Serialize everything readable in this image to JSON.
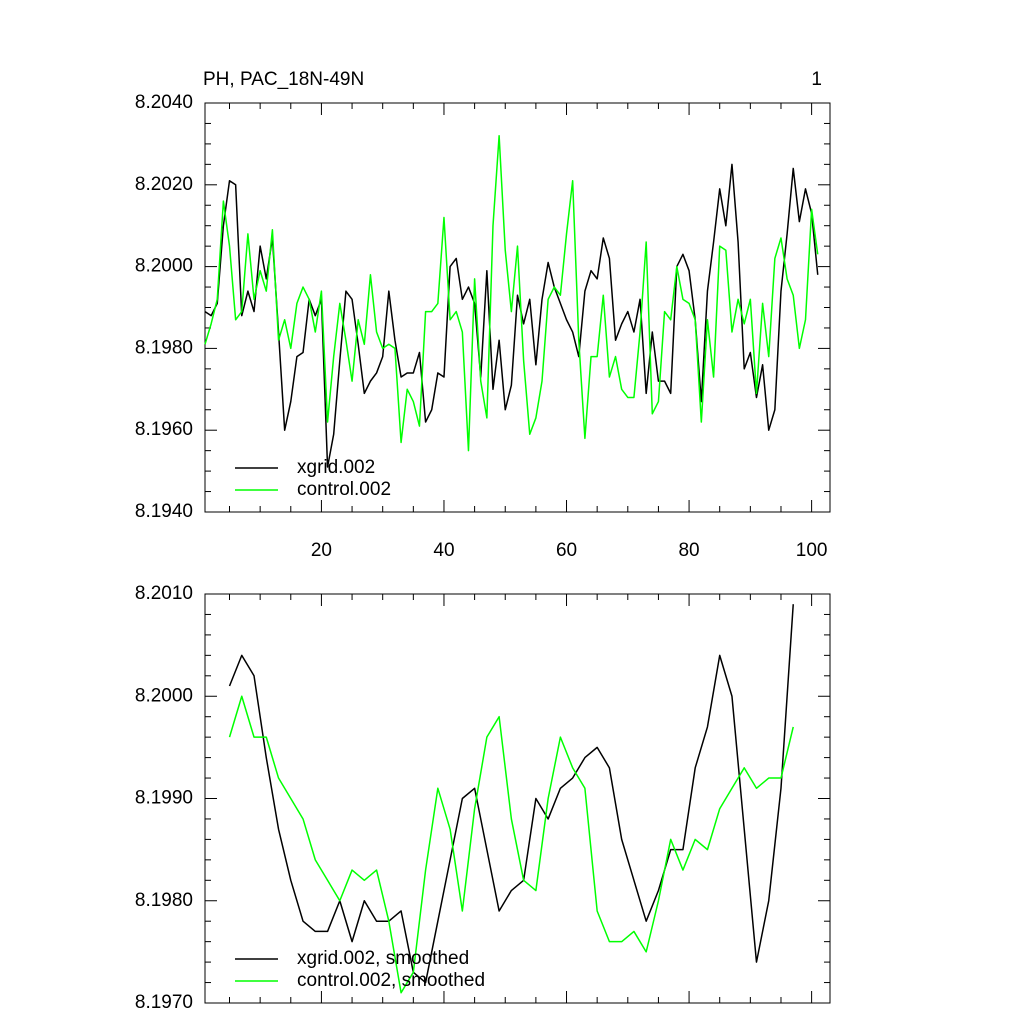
{
  "chart_data": [
    {
      "type": "line",
      "title": "PH, PAC_18N-49N",
      "annotation": "1",
      "x": [
        1,
        2,
        3,
        4,
        5,
        6,
        7,
        8,
        9,
        10,
        11,
        12,
        13,
        14,
        15,
        16,
        17,
        18,
        19,
        20,
        21,
        22,
        23,
        24,
        25,
        26,
        27,
        28,
        29,
        30,
        31,
        32,
        33,
        34,
        35,
        36,
        37,
        38,
        39,
        40,
        41,
        42,
        43,
        44,
        45,
        46,
        47,
        48,
        49,
        50,
        51,
        52,
        53,
        54,
        55,
        56,
        57,
        58,
        59,
        60,
        61,
        62,
        63,
        64,
        65,
        66,
        67,
        68,
        69,
        70,
        71,
        72,
        73,
        74,
        75,
        76,
        77,
        78,
        79,
        80,
        81,
        82,
        83,
        84,
        85,
        86,
        87,
        88,
        89,
        90,
        91,
        92,
        93,
        94,
        95,
        96,
        97,
        98,
        99,
        100,
        101
      ],
      "xlim": [
        1,
        103
      ],
      "xticks": [
        20,
        40,
        60,
        80,
        100
      ],
      "show_xtick_labels": true,
      "ylim": [
        8.194,
        8.204
      ],
      "yticks": [
        {
          "value": 8.194,
          "label": "8.1940"
        },
        {
          "value": 8.196,
          "label": "8.1960"
        },
        {
          "value": 8.198,
          "label": "8.1980"
        },
        {
          "value": 8.2,
          "label": "8.2000"
        },
        {
          "value": 8.202,
          "label": "8.2020"
        },
        {
          "value": 8.204,
          "label": "8.2040"
        }
      ],
      "legend": "lower left",
      "series": [
        {
          "name": "xgrid.002",
          "color": "#000000",
          "values": [
            8.1989,
            8.1988,
            8.1991,
            8.201,
            8.2021,
            8.202,
            8.1988,
            8.1994,
            8.1989,
            8.2005,
            8.1997,
            8.2007,
            8.1984,
            8.196,
            8.1967,
            8.1978,
            8.1979,
            8.1992,
            8.1988,
            8.1992,
            8.1951,
            8.1959,
            8.1977,
            8.1994,
            8.1992,
            8.1981,
            8.1969,
            8.1972,
            8.1974,
            8.1978,
            8.1994,
            8.1982,
            8.1973,
            8.1974,
            8.1974,
            8.1979,
            8.1962,
            8.1965,
            8.1974,
            8.1973,
            8.2,
            8.2002,
            8.1992,
            8.1995,
            8.1991,
            8.1973,
            8.1999,
            8.197,
            8.1982,
            8.1965,
            8.1971,
            8.1993,
            8.1986,
            8.1992,
            8.1976,
            8.1992,
            8.2001,
            8.1995,
            8.1991,
            8.1987,
            8.1984,
            8.1978,
            8.1994,
            8.1999,
            8.1997,
            8.2007,
            8.2002,
            8.1982,
            8.1986,
            8.1989,
            8.1984,
            8.1992,
            8.1969,
            8.1984,
            8.1972,
            8.1972,
            8.1969,
            8.2,
            8.2003,
            8.1999,
            8.1987,
            8.1967,
            8.1994,
            8.2006,
            8.2019,
            8.201,
            8.2025,
            8.2006,
            8.1975,
            8.1979,
            8.1968,
            8.1976,
            8.196,
            8.1965,
            8.1994,
            8.2008,
            8.2024,
            8.2011,
            8.2019,
            8.2013,
            8.1998
          ]
        },
        {
          "name": "control.002",
          "color": "#00ff00",
          "values": [
            8.1981,
            8.1986,
            8.1992,
            8.2016,
            8.2005,
            8.1987,
            8.1989,
            8.2008,
            8.1992,
            8.1999,
            8.1994,
            8.2009,
            8.1982,
            8.1987,
            8.198,
            8.1991,
            8.1995,
            8.1992,
            8.1984,
            8.1994,
            8.1962,
            8.1978,
            8.1991,
            8.1982,
            8.1972,
            8.1987,
            8.1981,
            8.1998,
            8.1984,
            8.198,
            8.1981,
            8.198,
            8.1957,
            8.197,
            8.1967,
            8.1961,
            8.1989,
            8.1989,
            8.1991,
            8.2012,
            8.1987,
            8.1989,
            8.1984,
            8.1955,
            8.1997,
            8.1972,
            8.1963,
            8.201,
            8.2032,
            8.2004,
            8.1989,
            8.2005,
            8.1977,
            8.1959,
            8.1963,
            8.1972,
            8.1992,
            8.1995,
            8.1993,
            8.2008,
            8.2021,
            8.1982,
            8.1958,
            8.1978,
            8.1978,
            8.1993,
            8.1973,
            8.1978,
            8.197,
            8.1968,
            8.1968,
            8.1984,
            8.2006,
            8.1964,
            8.1967,
            8.1989,
            8.1987,
            8.2,
            8.1992,
            8.1991,
            8.1987,
            8.1962,
            8.1987,
            8.1973,
            8.2005,
            8.2004,
            8.1984,
            8.1992,
            8.1986,
            8.1992,
            8.1969,
            8.1991,
            8.1978,
            8.2002,
            8.2007,
            8.1997,
            8.1993,
            8.198,
            8.1987,
            8.2014,
            8.2003
          ]
        }
      ]
    },
    {
      "type": "line",
      "x": [
        5,
        7,
        9,
        11,
        13,
        15,
        17,
        19,
        21,
        23,
        25,
        27,
        29,
        31,
        33,
        35,
        37,
        39,
        41,
        43,
        45,
        47,
        49,
        51,
        53,
        55,
        57,
        59,
        61,
        63,
        65,
        67,
        69,
        71,
        73,
        75,
        77,
        79,
        81,
        83,
        85,
        87,
        89,
        91,
        93,
        95,
        97
      ],
      "xlim": [
        1,
        103
      ],
      "xticks": [
        20,
        40,
        60,
        80,
        100
      ],
      "show_xtick_labels": false,
      "ylim": [
        8.197,
        8.201
      ],
      "yticks": [
        {
          "value": 8.197,
          "label": "8.1970"
        },
        {
          "value": 8.198,
          "label": "8.1980"
        },
        {
          "value": 8.199,
          "label": "8.1990"
        },
        {
          "value": 8.2,
          "label": "8.2000"
        },
        {
          "value": 8.201,
          "label": "8.2010"
        }
      ],
      "legend": "lower left",
      "series": [
        {
          "name": "xgrid.002, smoothed",
          "color": "#000000",
          "values": [
            8.2001,
            8.2004,
            8.2002,
            8.1994,
            8.1987,
            8.1982,
            8.1978,
            8.1977,
            8.1977,
            8.198,
            8.1976,
            8.198,
            8.1978,
            8.1978,
            8.1979,
            8.1973,
            8.1972,
            8.1978,
            8.1984,
            8.199,
            8.1991,
            8.1985,
            8.1979,
            8.1981,
            8.1982,
            8.199,
            8.1988,
            8.1991,
            8.1992,
            8.1994,
            8.1995,
            8.1993,
            8.1986,
            8.1982,
            8.1978,
            8.1981,
            8.1985,
            8.1985,
            8.1993,
            8.1997,
            8.2004,
            8.2,
            8.1987,
            8.1974,
            8.198,
            8.1991,
            8.2009
          ]
        },
        {
          "name": "control.002, smoothed",
          "color": "#00ff00",
          "values": [
            8.1996,
            8.2,
            8.1996,
            8.1996,
            8.1992,
            8.199,
            8.1988,
            8.1984,
            8.1982,
            8.198,
            8.1983,
            8.1982,
            8.1983,
            8.1978,
            8.1971,
            8.1973,
            8.1983,
            8.1991,
            8.1987,
            8.1979,
            8.1989,
            8.1996,
            8.1998,
            8.1988,
            8.1982,
            8.1981,
            8.199,
            8.1996,
            8.1993,
            8.1991,
            8.1979,
            8.1976,
            8.1976,
            8.1977,
            8.1975,
            8.198,
            8.1986,
            8.1983,
            8.1986,
            8.1985,
            8.1989,
            8.1991,
            8.1993,
            8.1991,
            8.1992,
            8.1992,
            8.1997
          ]
        }
      ]
    }
  ]
}
